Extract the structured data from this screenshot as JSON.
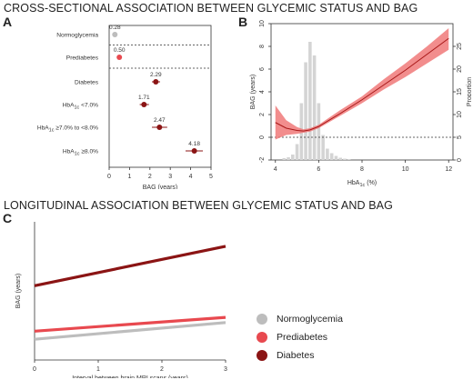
{
  "titles": {
    "top": "CROSS-SECTIONAL ASSOCIATION BETWEEN GLYCEMIC STATUS AND BAG",
    "bottom": "LONGITUDINAL ASSOCIATION BETWEEN GLYCEMIC STATUS AND BAG"
  },
  "panels": {
    "a": "A",
    "b": "B",
    "c": "C"
  },
  "colors": {
    "gray": "#bdbdbd",
    "light_red": "#e8494f",
    "dark_red": "#8b1414"
  },
  "chart_data": [
    {
      "type": "scatter",
      "panel": "A",
      "xlabel": "BAG (years)",
      "xlim": [
        0,
        5
      ],
      "xticks": [
        "0",
        "1",
        "2",
        "3",
        "4",
        "5"
      ],
      "categories": [
        "Normoglycemia",
        "Prediabetes",
        "Diabetes",
        "HbA1c <7.0%",
        "HbA1c ≥7.0% to <8.0%",
        "HbA1c ≥8.0%"
      ],
      "category_labels": [
        {
          "main": "Normoglycemia"
        },
        {
          "main": "Prediabetes"
        },
        {
          "main": "Diabetes"
        },
        {
          "main": "HbA",
          "sub": "1c",
          "rest": " <7.0%"
        },
        {
          "main": "HbA",
          "sub": "1c",
          "rest": " ≥7.0% to <8.0%"
        },
        {
          "main": "HbA",
          "sub": "1c",
          "rest": " ≥8.0%"
        }
      ],
      "values": [
        0.28,
        0.5,
        2.29,
        1.71,
        2.47,
        4.18
      ],
      "value_labels": [
        "0.28",
        "0.50",
        "2.29",
        "1.71",
        "2.47",
        "4.18"
      ],
      "ci_low": [
        null,
        null,
        2.1,
        1.5,
        2.1,
        3.75
      ],
      "ci_high": [
        null,
        null,
        2.5,
        1.95,
        2.85,
        4.6
      ],
      "point_colors": [
        "#bdbdbd",
        "#e8494f",
        "#8b1414",
        "#8b1414",
        "#8b1414",
        "#8b1414"
      ]
    },
    {
      "type": "line",
      "panel": "B",
      "xlabel": {
        "main": "HbA",
        "sub": "1c",
        "rest": " (%)"
      },
      "ylabel": "BAG (years)",
      "y2label": "Proportion",
      "xlim": [
        3.8,
        12.2
      ],
      "ylim": [
        -2,
        10
      ],
      "xticks": [
        4,
        6,
        8,
        10,
        12
      ],
      "yticks": [
        -2,
        0,
        2,
        4,
        6,
        8,
        10
      ],
      "y2ticks": [
        0,
        5,
        10,
        15,
        20,
        25
      ],
      "y2lim": [
        0,
        30
      ],
      "reference_line": 0,
      "curve": {
        "x": [
          4.0,
          4.5,
          5.0,
          5.3,
          5.6,
          6.0,
          7.0,
          8.0,
          9.0,
          10.0,
          11.0,
          12.0
        ],
        "y": [
          1.3,
          0.8,
          0.6,
          0.55,
          0.65,
          0.95,
          2.1,
          3.3,
          4.6,
          5.9,
          7.3,
          8.7
        ],
        "lower": [
          -0.2,
          0.2,
          0.3,
          0.4,
          0.5,
          0.8,
          1.9,
          3.0,
          4.2,
          5.3,
          6.5,
          7.7
        ],
        "upper": [
          2.8,
          1.5,
          0.9,
          0.7,
          0.8,
          1.1,
          2.4,
          3.6,
          5.1,
          6.5,
          8.0,
          9.6
        ]
      },
      "histogram": {
        "x": [
          4.4,
          4.6,
          4.8,
          5.0,
          5.2,
          5.4,
          5.6,
          5.8,
          6.0,
          6.2,
          6.4,
          6.6,
          6.8,
          7.0,
          7.2,
          7.4
        ],
        "proportion": [
          0.4,
          0.6,
          1.2,
          3.5,
          12.5,
          21.5,
          26.0,
          23.0,
          12.5,
          5.5,
          2.5,
          1.5,
          0.9,
          0.5,
          0.3,
          0.2
        ]
      }
    },
    {
      "type": "line",
      "panel": "C",
      "xlabel": "Interval between brain MRI scans (years)",
      "ylabel": "BAG (years)",
      "xlim": [
        0,
        3
      ],
      "ylim": [
        -0.8,
        4.0
      ],
      "xticks": [
        0,
        1,
        2,
        3
      ],
      "series": [
        {
          "name": "Normoglycemia",
          "color": "#bdbdbd",
          "x": [
            0,
            3
          ],
          "y": [
            -0.08,
            0.5
          ]
        },
        {
          "name": "Prediabetes",
          "color": "#e8494f",
          "x": [
            0,
            3
          ],
          "y": [
            0.2,
            0.68
          ]
        },
        {
          "name": "Diabetes",
          "color": "#8b1414",
          "x": [
            0,
            3
          ],
          "y": [
            1.78,
            3.15
          ]
        }
      ]
    }
  ]
}
